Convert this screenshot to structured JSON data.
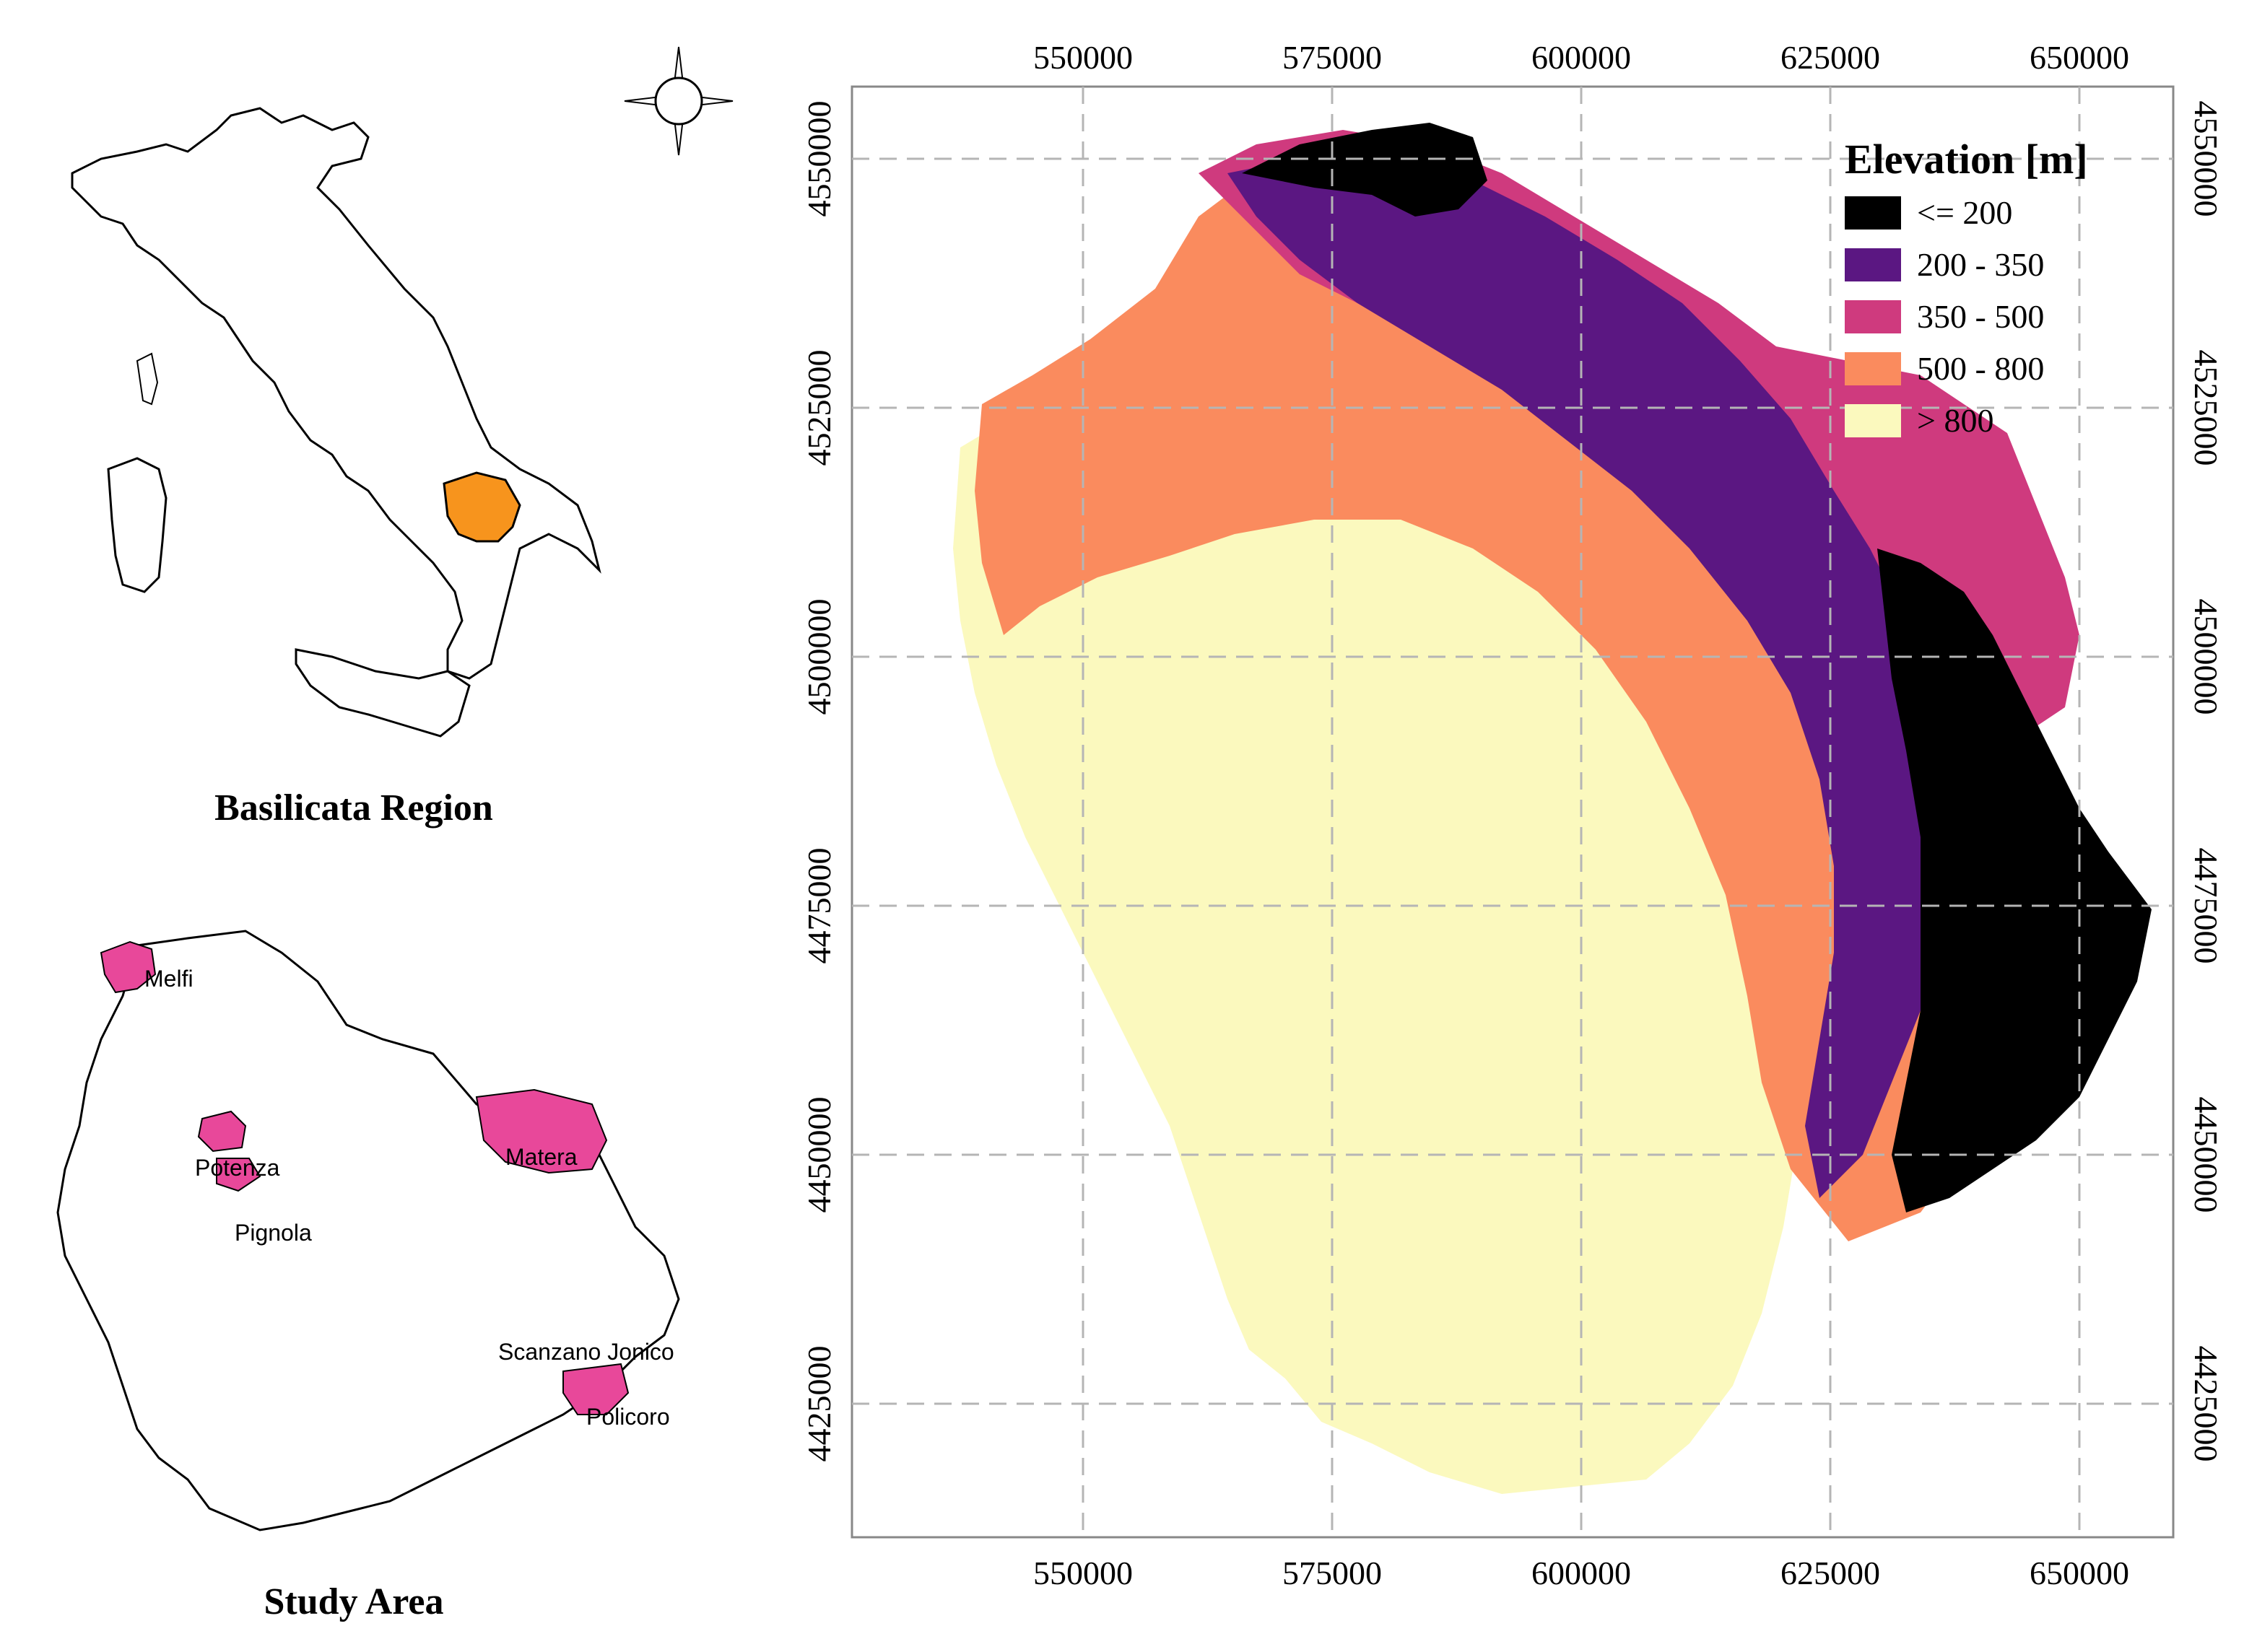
{
  "overview": {
    "caption": "Basilicata Region",
    "highlight_color": "#f7941d"
  },
  "study_area": {
    "caption": "Study Area",
    "cities": [
      "Melfi",
      "Potenza",
      "Pignola",
      "Matera",
      "Scanzano Jonico",
      "Policoro"
    ],
    "city_color": "#e8489a"
  },
  "elevation_map": {
    "x_ticks": [
      "550000",
      "575000",
      "600000",
      "625000",
      "650000"
    ],
    "y_ticks": [
      "4550000",
      "4525000",
      "4500000",
      "4475000",
      "4450000",
      "4425000"
    ],
    "x_range": [
      527000,
      659000
    ],
    "y_range": [
      4410000,
      4558000
    ],
    "grid": "dashed",
    "legend": {
      "title": "Elevation [m]",
      "position": "top-right",
      "items": [
        {
          "label": "<= 200",
          "color": "#000000"
        },
        {
          "label": "200 - 350",
          "color": "#5b1782"
        },
        {
          "label": "350 - 500",
          "color": "#cf3a7e"
        },
        {
          "label": "500 - 800",
          "color": "#fa8b5e"
        },
        {
          "label": "> 800",
          "color": "#fbf9be"
        }
      ]
    }
  },
  "compass": {
    "icon": "compass-rose-icon"
  }
}
